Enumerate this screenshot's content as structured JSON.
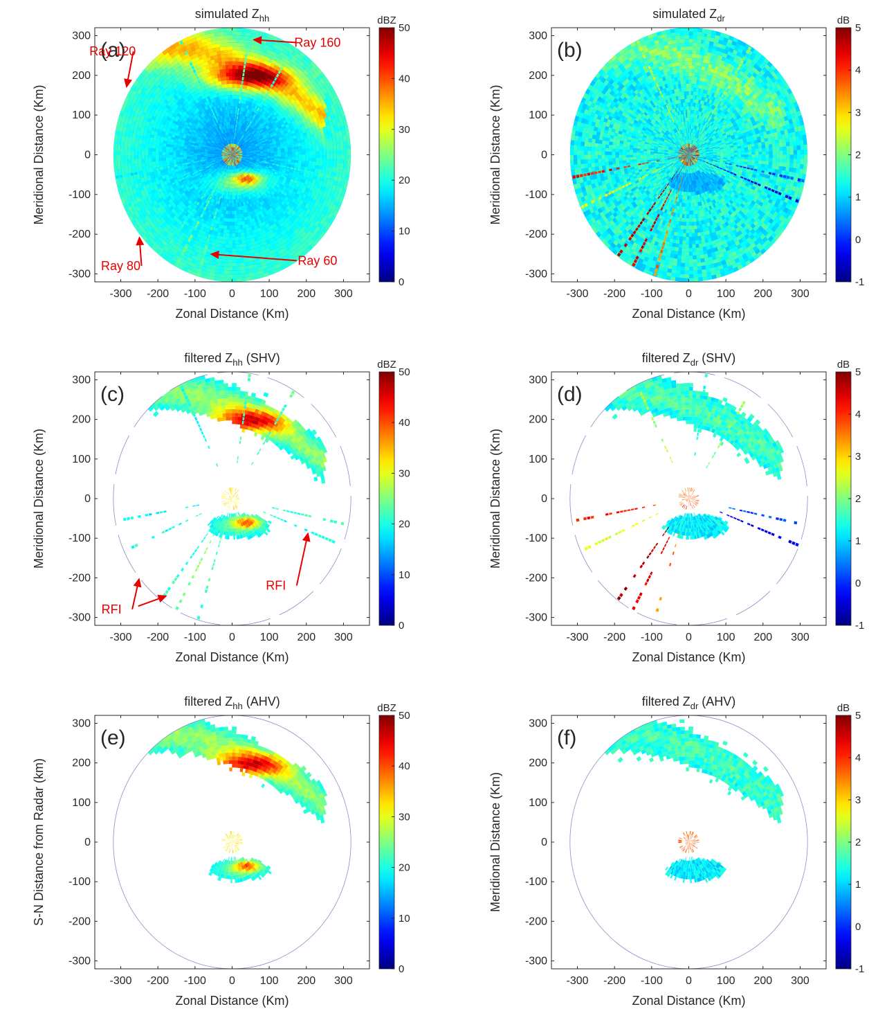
{
  "chart_data": [
    {
      "type": "heatmap",
      "panel_label": "(a)",
      "title": "simulated Z",
      "title_subscript": "hh",
      "title_suffix": "",
      "xlabel": "Zonal Distance (Km)",
      "ylabel": "Meridional Distance (Km)",
      "xlim": [
        -370,
        370
      ],
      "ylim": [
        -320,
        320
      ],
      "xticks": [
        -300,
        -200,
        -100,
        0,
        100,
        200,
        300
      ],
      "yticks": [
        -300,
        -200,
        -100,
        0,
        100,
        200,
        300
      ],
      "colorbar": {
        "unit": "dBZ",
        "min": 0,
        "max": 50,
        "ticks": [
          0,
          10,
          20,
          30,
          40,
          50
        ],
        "colormap": "jet"
      },
      "radar_range_km": 320,
      "mode": "full",
      "annotations": [
        {
          "text": "Ray 160",
          "x": 230,
          "y": 272,
          "arrow_to": [
            55,
            290
          ]
        },
        {
          "text": "Ray 120",
          "x": -322,
          "y": 250,
          "arrow_to": [
            -285,
            168
          ]
        },
        {
          "text": "Ray 80",
          "x": -300,
          "y": -290,
          "arrow_to": [
            -250,
            -205
          ]
        },
        {
          "text": "Ray 60",
          "x": 230,
          "y": -277,
          "arrow_to": [
            -60,
            -250
          ]
        }
      ]
    },
    {
      "type": "heatmap",
      "panel_label": "(b)",
      "title": "simulated Z",
      "title_subscript": "dr",
      "title_suffix": "",
      "xlabel": "Zonal Distance (Km)",
      "ylabel": "Meridional Distance (Km)",
      "xlim": [
        -370,
        370
      ],
      "ylim": [
        -320,
        320
      ],
      "xticks": [
        -300,
        -200,
        -100,
        0,
        100,
        200,
        300
      ],
      "yticks": [
        -300,
        -200,
        -100,
        0,
        100,
        200,
        300
      ],
      "colorbar": {
        "unit": "dB",
        "min": -1,
        "max": 5,
        "ticks": [
          -1,
          0,
          1,
          2,
          3,
          4,
          5
        ],
        "colormap": "jet"
      },
      "radar_range_km": 320,
      "mode": "full",
      "annotations": []
    },
    {
      "type": "heatmap",
      "panel_label": "(c)",
      "title": "filtered  Z",
      "title_subscript": "hh",
      "title_suffix": " (SHV)",
      "xlabel": "Zonal Distance (Km)",
      "ylabel": "Meridional Distance (Km)",
      "xlim": [
        -370,
        370
      ],
      "ylim": [
        -320,
        320
      ],
      "xticks": [
        -300,
        -200,
        -100,
        0,
        100,
        200,
        300
      ],
      "yticks": [
        -300,
        -200,
        -100,
        0,
        100,
        200,
        300
      ],
      "colorbar": {
        "unit": "dBZ",
        "min": 0,
        "max": 50,
        "ticks": [
          0,
          10,
          20,
          30,
          40,
          50
        ],
        "colormap": "jet"
      },
      "radar_range_km": 320,
      "mode": "filtered",
      "annotations": [
        {
          "text": "RFI",
          "x": 118,
          "y": -230,
          "arrow_to": [
            205,
            -85
          ]
        },
        {
          "text": "RFI",
          "x": -325,
          "y": -290,
          "arrow_to": [
            -250,
            -200
          ]
        },
        {
          "text": "",
          "x": -270,
          "y": -282,
          "arrow_to": [
            -175,
            -245
          ]
        }
      ]
    },
    {
      "type": "heatmap",
      "panel_label": "(d)",
      "title": "filtered  Z",
      "title_subscript": "dr",
      "title_suffix": " (SHV)",
      "xlabel": "Zonal Distance (Km)",
      "ylabel": "Meridional Distance (Km)",
      "xlim": [
        -370,
        370
      ],
      "ylim": [
        -320,
        320
      ],
      "xticks": [
        -300,
        -200,
        -100,
        0,
        100,
        200,
        300
      ],
      "yticks": [
        -300,
        -200,
        -100,
        0,
        100,
        200,
        300
      ],
      "colorbar": {
        "unit": "dB",
        "min": -1,
        "max": 5,
        "ticks": [
          -1,
          0,
          1,
          2,
          3,
          4,
          5
        ],
        "colormap": "jet"
      },
      "radar_range_km": 320,
      "mode": "filtered",
      "annotations": []
    },
    {
      "type": "heatmap",
      "panel_label": "(e)",
      "title": "filtered  Z",
      "title_subscript": "hh",
      "title_suffix": " (AHV)",
      "xlabel": "Zonal Distance (Km)",
      "ylabel": "S-N Distance from Radar (km)",
      "xlim": [
        -370,
        370
      ],
      "ylim": [
        -320,
        320
      ],
      "xticks": [
        -300,
        -200,
        -100,
        0,
        100,
        200,
        300
      ],
      "yticks": [
        -300,
        -200,
        -100,
        0,
        100,
        200,
        300
      ],
      "colorbar": {
        "unit": "dBZ",
        "min": 0,
        "max": 50,
        "ticks": [
          0,
          10,
          20,
          30,
          40,
          50
        ],
        "colormap": "jet"
      },
      "radar_range_km": 320,
      "mode": "clean",
      "annotations": []
    },
    {
      "type": "heatmap",
      "panel_label": "(f)",
      "title": "filtered  Z",
      "title_subscript": "dr",
      "title_suffix": " (AHV)",
      "xlabel": "Zonal Distance (Km)",
      "ylabel": "Meridional Distance (Km)",
      "xlim": [
        -370,
        370
      ],
      "ylim": [
        -320,
        320
      ],
      "xticks": [
        -300,
        -200,
        -100,
        0,
        100,
        200,
        300
      ],
      "yticks": [
        -300,
        -200,
        -100,
        0,
        100,
        200,
        300
      ],
      "colorbar": {
        "unit": "dB",
        "min": -1,
        "max": 5,
        "ticks": [
          -1,
          0,
          1,
          2,
          3,
          4,
          5
        ],
        "colormap": "jet"
      },
      "radar_range_km": 320,
      "mode": "clean",
      "annotations": []
    }
  ],
  "colors": {
    "annotation": "#e60000",
    "axes": "#262626"
  }
}
